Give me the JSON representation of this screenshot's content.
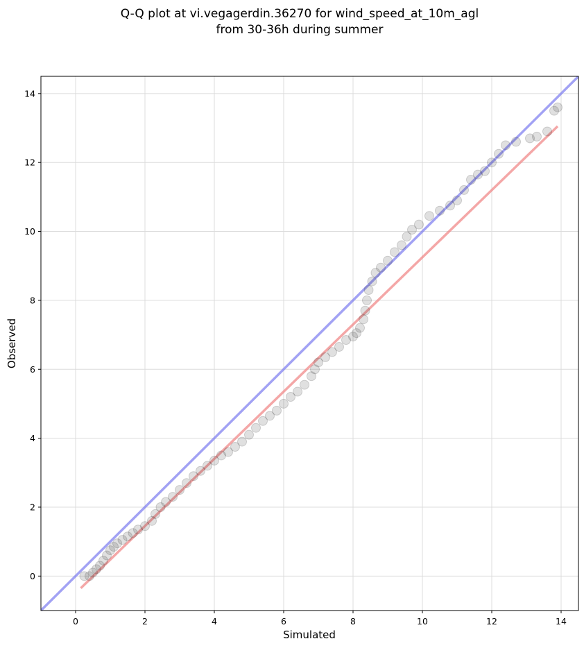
{
  "chart_data": {
    "type": "scatter",
    "title_lines": [
      "Q-Q plot at vi.vegagerdin.36270 for wind_speed_at_10m_agl",
      "from 30-36h during summer"
    ],
    "xlabel": "Simulated",
    "ylabel": "Observed",
    "xlim": [
      -1.0,
      14.5
    ],
    "ylim": [
      -1.0,
      14.5
    ],
    "xticks": [
      0,
      2,
      4,
      6,
      8,
      10,
      12,
      14
    ],
    "yticks": [
      0,
      2,
      4,
      6,
      8,
      10,
      12,
      14
    ],
    "xtick_labels": [
      "0",
      "2",
      "4",
      "6",
      "8",
      "10",
      "12",
      "14"
    ],
    "ytick_labels": [
      "0",
      "2",
      "4",
      "6",
      "8",
      "10",
      "12",
      "14"
    ],
    "grid": true,
    "reference_lines": {
      "identity": {
        "color": "#7a7af0",
        "from": [
          -1.0,
          -1.0
        ],
        "to": [
          14.5,
          14.5
        ]
      },
      "fit": {
        "color": "#f08a8a",
        "from": [
          0.15,
          -0.35
        ],
        "to": [
          13.9,
          13.05
        ]
      }
    },
    "marker_color": "#222222",
    "quantiles": [
      [
        0.25,
        0.0
      ],
      [
        0.4,
        0.0
      ],
      [
        0.5,
        0.1
      ],
      [
        0.6,
        0.2
      ],
      [
        0.7,
        0.3
      ],
      [
        0.8,
        0.45
      ],
      [
        0.9,
        0.6
      ],
      [
        1.0,
        0.75
      ],
      [
        1.1,
        0.85
      ],
      [
        1.2,
        0.95
      ],
      [
        1.35,
        1.05
      ],
      [
        1.5,
        1.15
      ],
      [
        1.65,
        1.25
      ],
      [
        1.8,
        1.35
      ],
      [
        2.0,
        1.45
      ],
      [
        2.2,
        1.6
      ],
      [
        2.3,
        1.8
      ],
      [
        2.45,
        2.0
      ],
      [
        2.6,
        2.15
      ],
      [
        2.8,
        2.3
      ],
      [
        3.0,
        2.5
      ],
      [
        3.2,
        2.7
      ],
      [
        3.4,
        2.9
      ],
      [
        3.6,
        3.05
      ],
      [
        3.8,
        3.2
      ],
      [
        4.0,
        3.35
      ],
      [
        4.2,
        3.5
      ],
      [
        4.4,
        3.6
      ],
      [
        4.6,
        3.75
      ],
      [
        4.8,
        3.9
      ],
      [
        5.0,
        4.1
      ],
      [
        5.2,
        4.3
      ],
      [
        5.4,
        4.5
      ],
      [
        5.6,
        4.65
      ],
      [
        5.8,
        4.8
      ],
      [
        6.0,
        5.0
      ],
      [
        6.2,
        5.2
      ],
      [
        6.4,
        5.35
      ],
      [
        6.6,
        5.55
      ],
      [
        6.8,
        5.8
      ],
      [
        6.9,
        6.0
      ],
      [
        7.0,
        6.2
      ],
      [
        7.2,
        6.35
      ],
      [
        7.4,
        6.5
      ],
      [
        7.6,
        6.65
      ],
      [
        7.8,
        6.85
      ],
      [
        8.0,
        6.95
      ],
      [
        8.1,
        7.05
      ],
      [
        8.2,
        7.2
      ],
      [
        8.3,
        7.45
      ],
      [
        8.35,
        7.7
      ],
      [
        8.4,
        8.0
      ],
      [
        8.45,
        8.3
      ],
      [
        8.55,
        8.55
      ],
      [
        8.65,
        8.8
      ],
      [
        8.8,
        8.95
      ],
      [
        9.0,
        9.15
      ],
      [
        9.2,
        9.4
      ],
      [
        9.4,
        9.6
      ],
      [
        9.55,
        9.85
      ],
      [
        9.7,
        10.05
      ],
      [
        9.9,
        10.2
      ],
      [
        10.2,
        10.45
      ],
      [
        10.5,
        10.6
      ],
      [
        10.8,
        10.75
      ],
      [
        11.0,
        10.9
      ],
      [
        11.2,
        11.2
      ],
      [
        11.4,
        11.5
      ],
      [
        11.6,
        11.65
      ],
      [
        11.8,
        11.75
      ],
      [
        12.0,
        12.0
      ],
      [
        12.2,
        12.25
      ],
      [
        12.4,
        12.5
      ],
      [
        12.7,
        12.6
      ],
      [
        13.1,
        12.7
      ],
      [
        13.3,
        12.75
      ],
      [
        13.6,
        12.9
      ],
      [
        13.8,
        13.5
      ],
      [
        13.9,
        13.6
      ]
    ]
  }
}
